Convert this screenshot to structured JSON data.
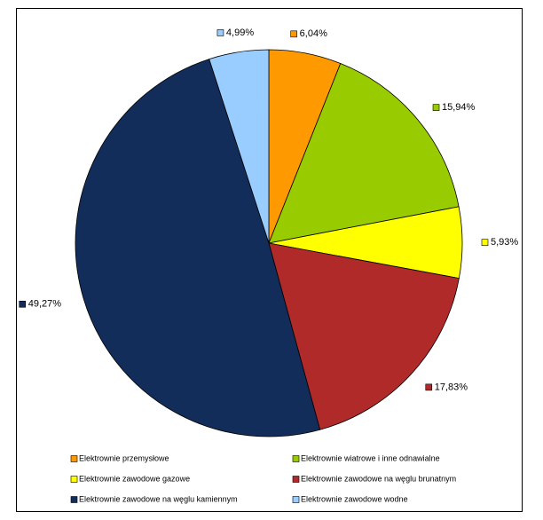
{
  "chart_data": {
    "type": "pie",
    "categories": [
      "Elektrownie przemysłowe",
      "Elektrownie wiatrowe i inne odnawialne",
      "Elektrownie zawodowe gazowe",
      "Elektrownie zawodowe na węglu brunatnym",
      "Elektrownie zawodowe na węglu kamiennym",
      "Elektrownie zawodowe wodne"
    ],
    "values": [
      6.04,
      15.94,
      5.93,
      17.83,
      49.27,
      4.99
    ],
    "value_labels": [
      "6,04%",
      "15,94%",
      "5,93%",
      "17,83%",
      "49,27%",
      "4,99%"
    ],
    "colors": [
      "#ff9900",
      "#99cc00",
      "#ffff00",
      "#b02a2a",
      "#122d5a",
      "#99ccff"
    ]
  }
}
